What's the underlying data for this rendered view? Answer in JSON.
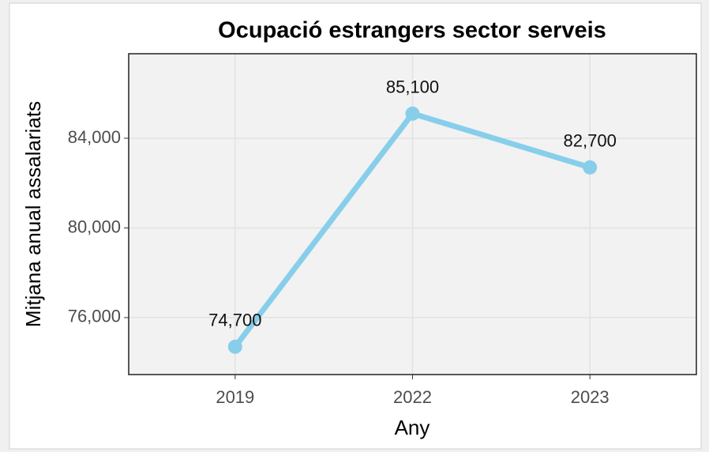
{
  "chart_data": {
    "type": "line",
    "title": "Ocupació estrangers sector serveis",
    "x_label": "Any",
    "y_label": "Mitjana anual assalariats",
    "categories": [
      "2019",
      "2022",
      "2023"
    ],
    "series": [
      {
        "name": "Ocupació",
        "color": "#87ceeb",
        "values": [
          74700,
          85100,
          82700
        ],
        "value_labels": [
          "74,700",
          "85,100",
          "82,700"
        ]
      }
    ],
    "ylim": [
      73460,
      87770
    ],
    "yticks": [
      {
        "value": 76000,
        "label": "76,000"
      },
      {
        "value": 80000,
        "label": "80,000"
      },
      {
        "value": 84000,
        "label": "84,000"
      }
    ],
    "grid": true
  }
}
